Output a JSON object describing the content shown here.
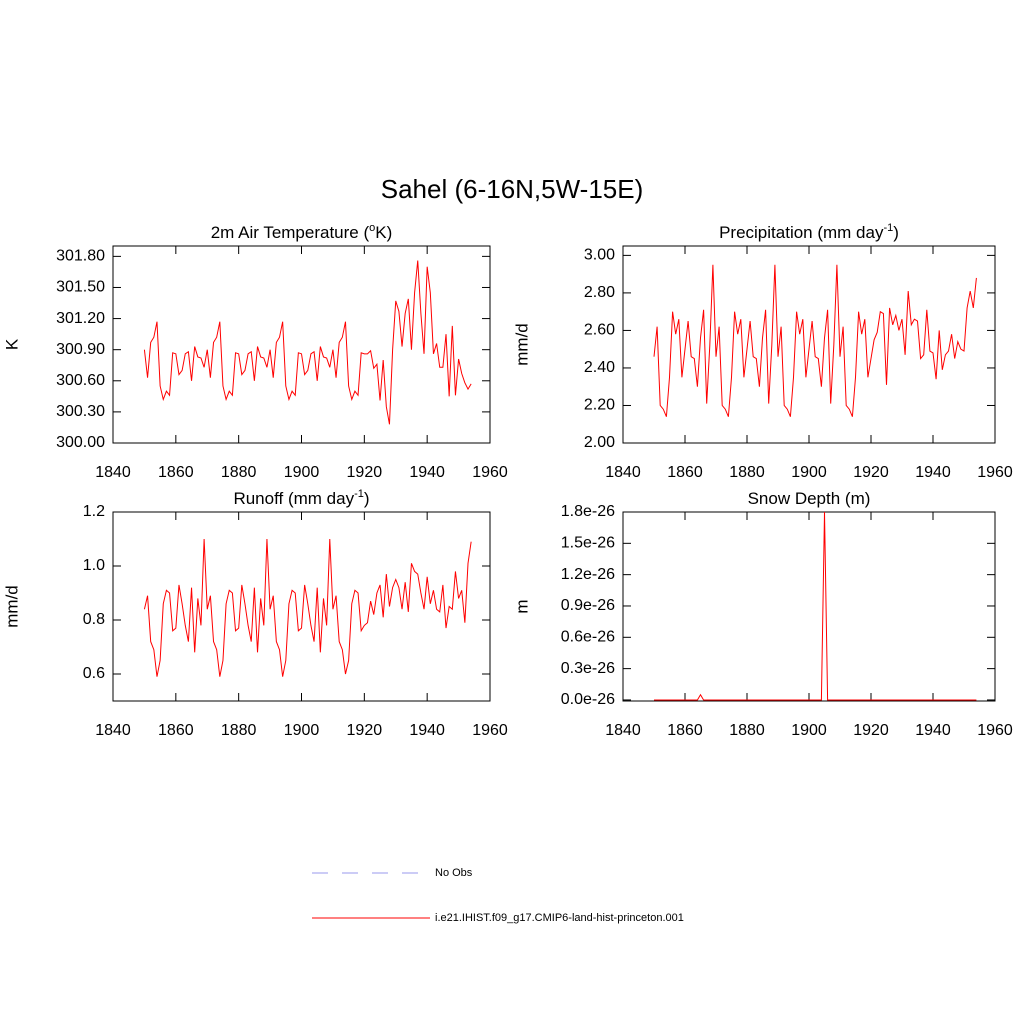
{
  "title": "Sahel (6-16N,5W-15E)",
  "legend": [
    {
      "name": "No Obs",
      "color": "#9999ee",
      "dash": true
    },
    {
      "name": "i.e21.IHIST.f09_g17.CMIP6-land-hist-princeton.001",
      "color": "#ff0000",
      "dash": false
    }
  ],
  "chart_data": [
    {
      "type": "line",
      "title": [
        "2m Air Temperature (",
        "o",
        "K)"
      ],
      "ylabel": "K",
      "x": [
        1850,
        1851,
        1852,
        1853,
        1854,
        1855,
        1856,
        1857,
        1858,
        1859,
        1860,
        1861,
        1862,
        1863,
        1864,
        1865,
        1866,
        1867,
        1868,
        1869,
        1870,
        1871,
        1872,
        1873,
        1874,
        1875,
        1876,
        1877,
        1878,
        1879,
        1880,
        1881,
        1882,
        1883,
        1884,
        1885,
        1886,
        1887,
        1888,
        1889,
        1890,
        1891,
        1892,
        1893,
        1894,
        1895,
        1896,
        1897,
        1898,
        1899,
        1900,
        1901,
        1902,
        1903,
        1904,
        1905,
        1906,
        1907,
        1908,
        1909,
        1910,
        1911,
        1912,
        1913,
        1914,
        1915,
        1916,
        1917,
        1918,
        1919,
        1920,
        1921,
        1922,
        1923,
        1924,
        1925,
        1926,
        1927,
        1928,
        1929,
        1930,
        1931,
        1932,
        1933,
        1934,
        1935,
        1936,
        1937,
        1938,
        1939,
        1940,
        1941,
        1942,
        1943,
        1944,
        1945,
        1946,
        1947,
        1948,
        1949,
        1950,
        1951,
        1952,
        1953,
        1954
      ],
      "series": [
        {
          "color": "#ff0000",
          "values": [
            300.9,
            300.63,
            300.97,
            301.02,
            301.17,
            300.55,
            300.42,
            300.5,
            300.46,
            300.87,
            300.86,
            300.66,
            300.7,
            300.86,
            300.88,
            300.6,
            300.93,
            300.83,
            300.82,
            300.73,
            300.9,
            300.63,
            300.97,
            301.02,
            301.17,
            300.55,
            300.42,
            300.5,
            300.46,
            300.87,
            300.86,
            300.66,
            300.7,
            300.86,
            300.88,
            300.6,
            300.93,
            300.83,
            300.82,
            300.73,
            300.9,
            300.63,
            300.97,
            301.02,
            301.17,
            300.55,
            300.42,
            300.5,
            300.46,
            300.87,
            300.86,
            300.66,
            300.7,
            300.86,
            300.88,
            300.6,
            300.93,
            300.83,
            300.82,
            300.73,
            300.9,
            300.63,
            300.97,
            301.02,
            301.17,
            300.55,
            300.42,
            300.5,
            300.46,
            300.87,
            300.86,
            300.86,
            300.89,
            300.72,
            300.76,
            300.41,
            300.8,
            300.35,
            300.18,
            300.9,
            301.37,
            301.27,
            300.93,
            301.25,
            301.39,
            300.9,
            301.45,
            301.76,
            301.25,
            300.86,
            301.7,
            301.45,
            300.86,
            300.96,
            300.73,
            300.73,
            301.05,
            300.45,
            301.13,
            300.46,
            300.81,
            300.67,
            300.58,
            300.52,
            300.57
          ]
        }
      ],
      "xlim": [
        1840,
        1960
      ],
      "xticks": [
        1840,
        1860,
        1880,
        1900,
        1920,
        1940,
        1960
      ],
      "ylim": [
        300.0,
        301.9
      ],
      "yticks": [
        {
          "value": 300.0,
          "label": "300.00"
        },
        {
          "value": 300.3,
          "label": "300.30"
        },
        {
          "value": 300.6,
          "label": "300.60"
        },
        {
          "value": 300.9,
          "label": "300.90"
        },
        {
          "value": 301.2,
          "label": "301.20"
        },
        {
          "value": 301.5,
          "label": "301.50"
        },
        {
          "value": 301.8,
          "label": "301.80"
        }
      ]
    },
    {
      "type": "line",
      "title": [
        "Precipitation (mm day",
        "-1",
        ")"
      ],
      "ylabel": "mm/d",
      "x": [
        1850,
        1851,
        1852,
        1853,
        1854,
        1855,
        1856,
        1857,
        1858,
        1859,
        1860,
        1861,
        1862,
        1863,
        1864,
        1865,
        1866,
        1867,
        1868,
        1869,
        1870,
        1871,
        1872,
        1873,
        1874,
        1875,
        1876,
        1877,
        1878,
        1879,
        1880,
        1881,
        1882,
        1883,
        1884,
        1885,
        1886,
        1887,
        1888,
        1889,
        1890,
        1891,
        1892,
        1893,
        1894,
        1895,
        1896,
        1897,
        1898,
        1899,
        1900,
        1901,
        1902,
        1903,
        1904,
        1905,
        1906,
        1907,
        1908,
        1909,
        1910,
        1911,
        1912,
        1913,
        1914,
        1915,
        1916,
        1917,
        1918,
        1919,
        1920,
        1921,
        1922,
        1923,
        1924,
        1925,
        1926,
        1927,
        1928,
        1929,
        1930,
        1931,
        1932,
        1933,
        1934,
        1935,
        1936,
        1937,
        1938,
        1939,
        1940,
        1941,
        1942,
        1943,
        1944,
        1945,
        1946,
        1947,
        1948,
        1949,
        1950,
        1951,
        1952,
        1953,
        1954
      ],
      "series": [
        {
          "color": "#ff0000",
          "values": [
            2.46,
            2.62,
            2.2,
            2.18,
            2.14,
            2.35,
            2.7,
            2.58,
            2.66,
            2.35,
            2.5,
            2.65,
            2.46,
            2.45,
            2.3,
            2.56,
            2.71,
            2.21,
            2.52,
            2.95,
            2.46,
            2.62,
            2.2,
            2.18,
            2.14,
            2.35,
            2.7,
            2.58,
            2.66,
            2.35,
            2.5,
            2.65,
            2.46,
            2.45,
            2.3,
            2.56,
            2.71,
            2.21,
            2.52,
            2.95,
            2.46,
            2.62,
            2.2,
            2.18,
            2.14,
            2.35,
            2.7,
            2.58,
            2.66,
            2.35,
            2.5,
            2.65,
            2.46,
            2.45,
            2.3,
            2.56,
            2.71,
            2.21,
            2.52,
            2.95,
            2.46,
            2.62,
            2.2,
            2.18,
            2.14,
            2.35,
            2.7,
            2.58,
            2.66,
            2.35,
            2.45,
            2.55,
            2.59,
            2.7,
            2.69,
            2.31,
            2.72,
            2.63,
            2.68,
            2.6,
            2.66,
            2.47,
            2.81,
            2.63,
            2.66,
            2.65,
            2.45,
            2.47,
            2.71,
            2.49,
            2.48,
            2.34,
            2.6,
            2.39,
            2.47,
            2.49,
            2.58,
            2.45,
            2.54,
            2.5,
            2.49,
            2.72,
            2.81,
            2.72,
            2.88
          ]
        }
      ],
      "xlim": [
        1840,
        1960
      ],
      "xticks": [
        1840,
        1860,
        1880,
        1900,
        1920,
        1940,
        1960
      ],
      "ylim": [
        2.0,
        3.05
      ],
      "yticks": [
        {
          "value": 2.0,
          "label": "2.00"
        },
        {
          "value": 2.2,
          "label": "2.20"
        },
        {
          "value": 2.4,
          "label": "2.40"
        },
        {
          "value": 2.6,
          "label": "2.60"
        },
        {
          "value": 2.8,
          "label": "2.80"
        },
        {
          "value": 3.0,
          "label": "3.00"
        }
      ]
    },
    {
      "type": "line",
      "title": [
        "Runoff (mm day",
        "-1",
        ")"
      ],
      "ylabel": "mm/d",
      "x": [
        1850,
        1851,
        1852,
        1853,
        1854,
        1855,
        1856,
        1857,
        1858,
        1859,
        1860,
        1861,
        1862,
        1863,
        1864,
        1865,
        1866,
        1867,
        1868,
        1869,
        1870,
        1871,
        1872,
        1873,
        1874,
        1875,
        1876,
        1877,
        1878,
        1879,
        1880,
        1881,
        1882,
        1883,
        1884,
        1885,
        1886,
        1887,
        1888,
        1889,
        1890,
        1891,
        1892,
        1893,
        1894,
        1895,
        1896,
        1897,
        1898,
        1899,
        1900,
        1901,
        1902,
        1903,
        1904,
        1905,
        1906,
        1907,
        1908,
        1909,
        1910,
        1911,
        1912,
        1913,
        1914,
        1915,
        1916,
        1917,
        1918,
        1919,
        1920,
        1921,
        1922,
        1923,
        1924,
        1925,
        1926,
        1927,
        1928,
        1929,
        1930,
        1931,
        1932,
        1933,
        1934,
        1935,
        1936,
        1937,
        1938,
        1939,
        1940,
        1941,
        1942,
        1943,
        1944,
        1945,
        1946,
        1947,
        1948,
        1949,
        1950,
        1951,
        1952,
        1953,
        1954
      ],
      "series": [
        {
          "color": "#ff0000",
          "values": [
            0.84,
            0.89,
            0.72,
            0.69,
            0.59,
            0.65,
            0.86,
            0.91,
            0.9,
            0.76,
            0.77,
            0.93,
            0.86,
            0.78,
            0.72,
            0.92,
            0.68,
            0.88,
            0.78,
            1.1,
            0.84,
            0.89,
            0.72,
            0.69,
            0.59,
            0.65,
            0.86,
            0.91,
            0.9,
            0.76,
            0.77,
            0.93,
            0.86,
            0.78,
            0.72,
            0.92,
            0.68,
            0.88,
            0.78,
            1.1,
            0.84,
            0.89,
            0.72,
            0.69,
            0.59,
            0.65,
            0.86,
            0.91,
            0.9,
            0.76,
            0.77,
            0.93,
            0.86,
            0.78,
            0.72,
            0.92,
            0.68,
            0.88,
            0.78,
            1.1,
            0.84,
            0.89,
            0.72,
            0.69,
            0.6,
            0.65,
            0.86,
            0.91,
            0.9,
            0.76,
            0.78,
            0.79,
            0.87,
            0.82,
            0.9,
            0.93,
            0.81,
            0.97,
            0.85,
            0.92,
            0.95,
            0.92,
            0.84,
            0.94,
            0.83,
            1.01,
            0.98,
            0.97,
            0.9,
            0.84,
            0.96,
            0.86,
            0.91,
            0.84,
            0.83,
            0.93,
            0.77,
            0.85,
            0.84,
            0.98,
            0.88,
            0.91,
            0.79,
            1.01,
            1.09
          ]
        }
      ],
      "xlim": [
        1840,
        1960
      ],
      "xticks": [
        1840,
        1860,
        1880,
        1900,
        1920,
        1940,
        1960
      ],
      "ylim": [
        0.5,
        1.2
      ],
      "yticks": [
        0.6,
        0.8,
        {
          "value": 1.0,
          "label": "1.0"
        },
        1.2
      ]
    },
    {
      "type": "line",
      "title": [
        "Snow Depth (m)"
      ],
      "ylabel": "m",
      "x": [
        1850,
        1851,
        1852,
        1853,
        1854,
        1855,
        1856,
        1857,
        1858,
        1859,
        1860,
        1861,
        1862,
        1863,
        1864,
        1865,
        1866,
        1867,
        1868,
        1869,
        1870,
        1871,
        1872,
        1873,
        1874,
        1875,
        1876,
        1877,
        1878,
        1879,
        1880,
        1881,
        1882,
        1883,
        1884,
        1885,
        1886,
        1887,
        1888,
        1889,
        1890,
        1891,
        1892,
        1893,
        1894,
        1895,
        1896,
        1897,
        1898,
        1899,
        1900,
        1901,
        1902,
        1903,
        1904,
        1905,
        1906,
        1907,
        1908,
        1909,
        1910,
        1911,
        1912,
        1913,
        1914,
        1915,
        1916,
        1917,
        1918,
        1919,
        1920,
        1921,
        1922,
        1923,
        1924,
        1925,
        1926,
        1927,
        1928,
        1929,
        1930,
        1931,
        1932,
        1933,
        1934,
        1935,
        1936,
        1937,
        1938,
        1939,
        1940,
        1941,
        1942,
        1943,
        1944,
        1945,
        1946,
        1947,
        1948,
        1949,
        1950,
        1951,
        1952,
        1953,
        1954
      ],
      "series": [
        {
          "color": "#ff0000",
          "values": [
            0,
            0,
            0,
            0,
            0,
            0,
            0,
            0,
            0,
            0,
            0,
            0,
            0,
            0,
            0,
            5e-28,
            0,
            0,
            0,
            0,
            0,
            0,
            0,
            0,
            0,
            0,
            0,
            0,
            0,
            0,
            0,
            0,
            0,
            0,
            0,
            0,
            0,
            0,
            0,
            0,
            0,
            0,
            0,
            0,
            0,
            0,
            0,
            0,
            0,
            0,
            0,
            0,
            0,
            0,
            0,
            1.8e-26,
            0,
            0,
            0,
            0,
            0,
            0,
            0,
            0,
            0,
            0,
            0,
            0,
            0,
            0,
            0,
            0,
            0,
            0,
            0,
            0,
            0,
            0,
            0,
            0,
            0,
            0,
            0,
            0,
            0,
            0,
            0,
            0,
            0,
            0,
            0,
            0,
            0,
            0,
            0,
            0,
            0,
            0,
            0,
            0,
            0,
            0,
            0,
            0,
            0
          ]
        }
      ],
      "xlim": [
        1840,
        1960
      ],
      "xticks": [
        1840,
        1860,
        1880,
        1900,
        1920,
        1940,
        1960
      ],
      "ylim": [
        -1e-28,
        1.8e-26
      ],
      "yticks": [
        {
          "value": 0,
          "label": "0.0e-26"
        },
        {
          "value": 3e-27,
          "label": "0.3e-26"
        },
        {
          "value": 6e-27,
          "label": "0.6e-26"
        },
        {
          "value": 9e-27,
          "label": "0.9e-26"
        },
        {
          "value": 1.2e-26,
          "label": "1.2e-26"
        },
        {
          "value": 1.5e-26,
          "label": "1.5e-26"
        },
        {
          "value": 1.8e-26,
          "label": "1.8e-26"
        }
      ]
    }
  ]
}
